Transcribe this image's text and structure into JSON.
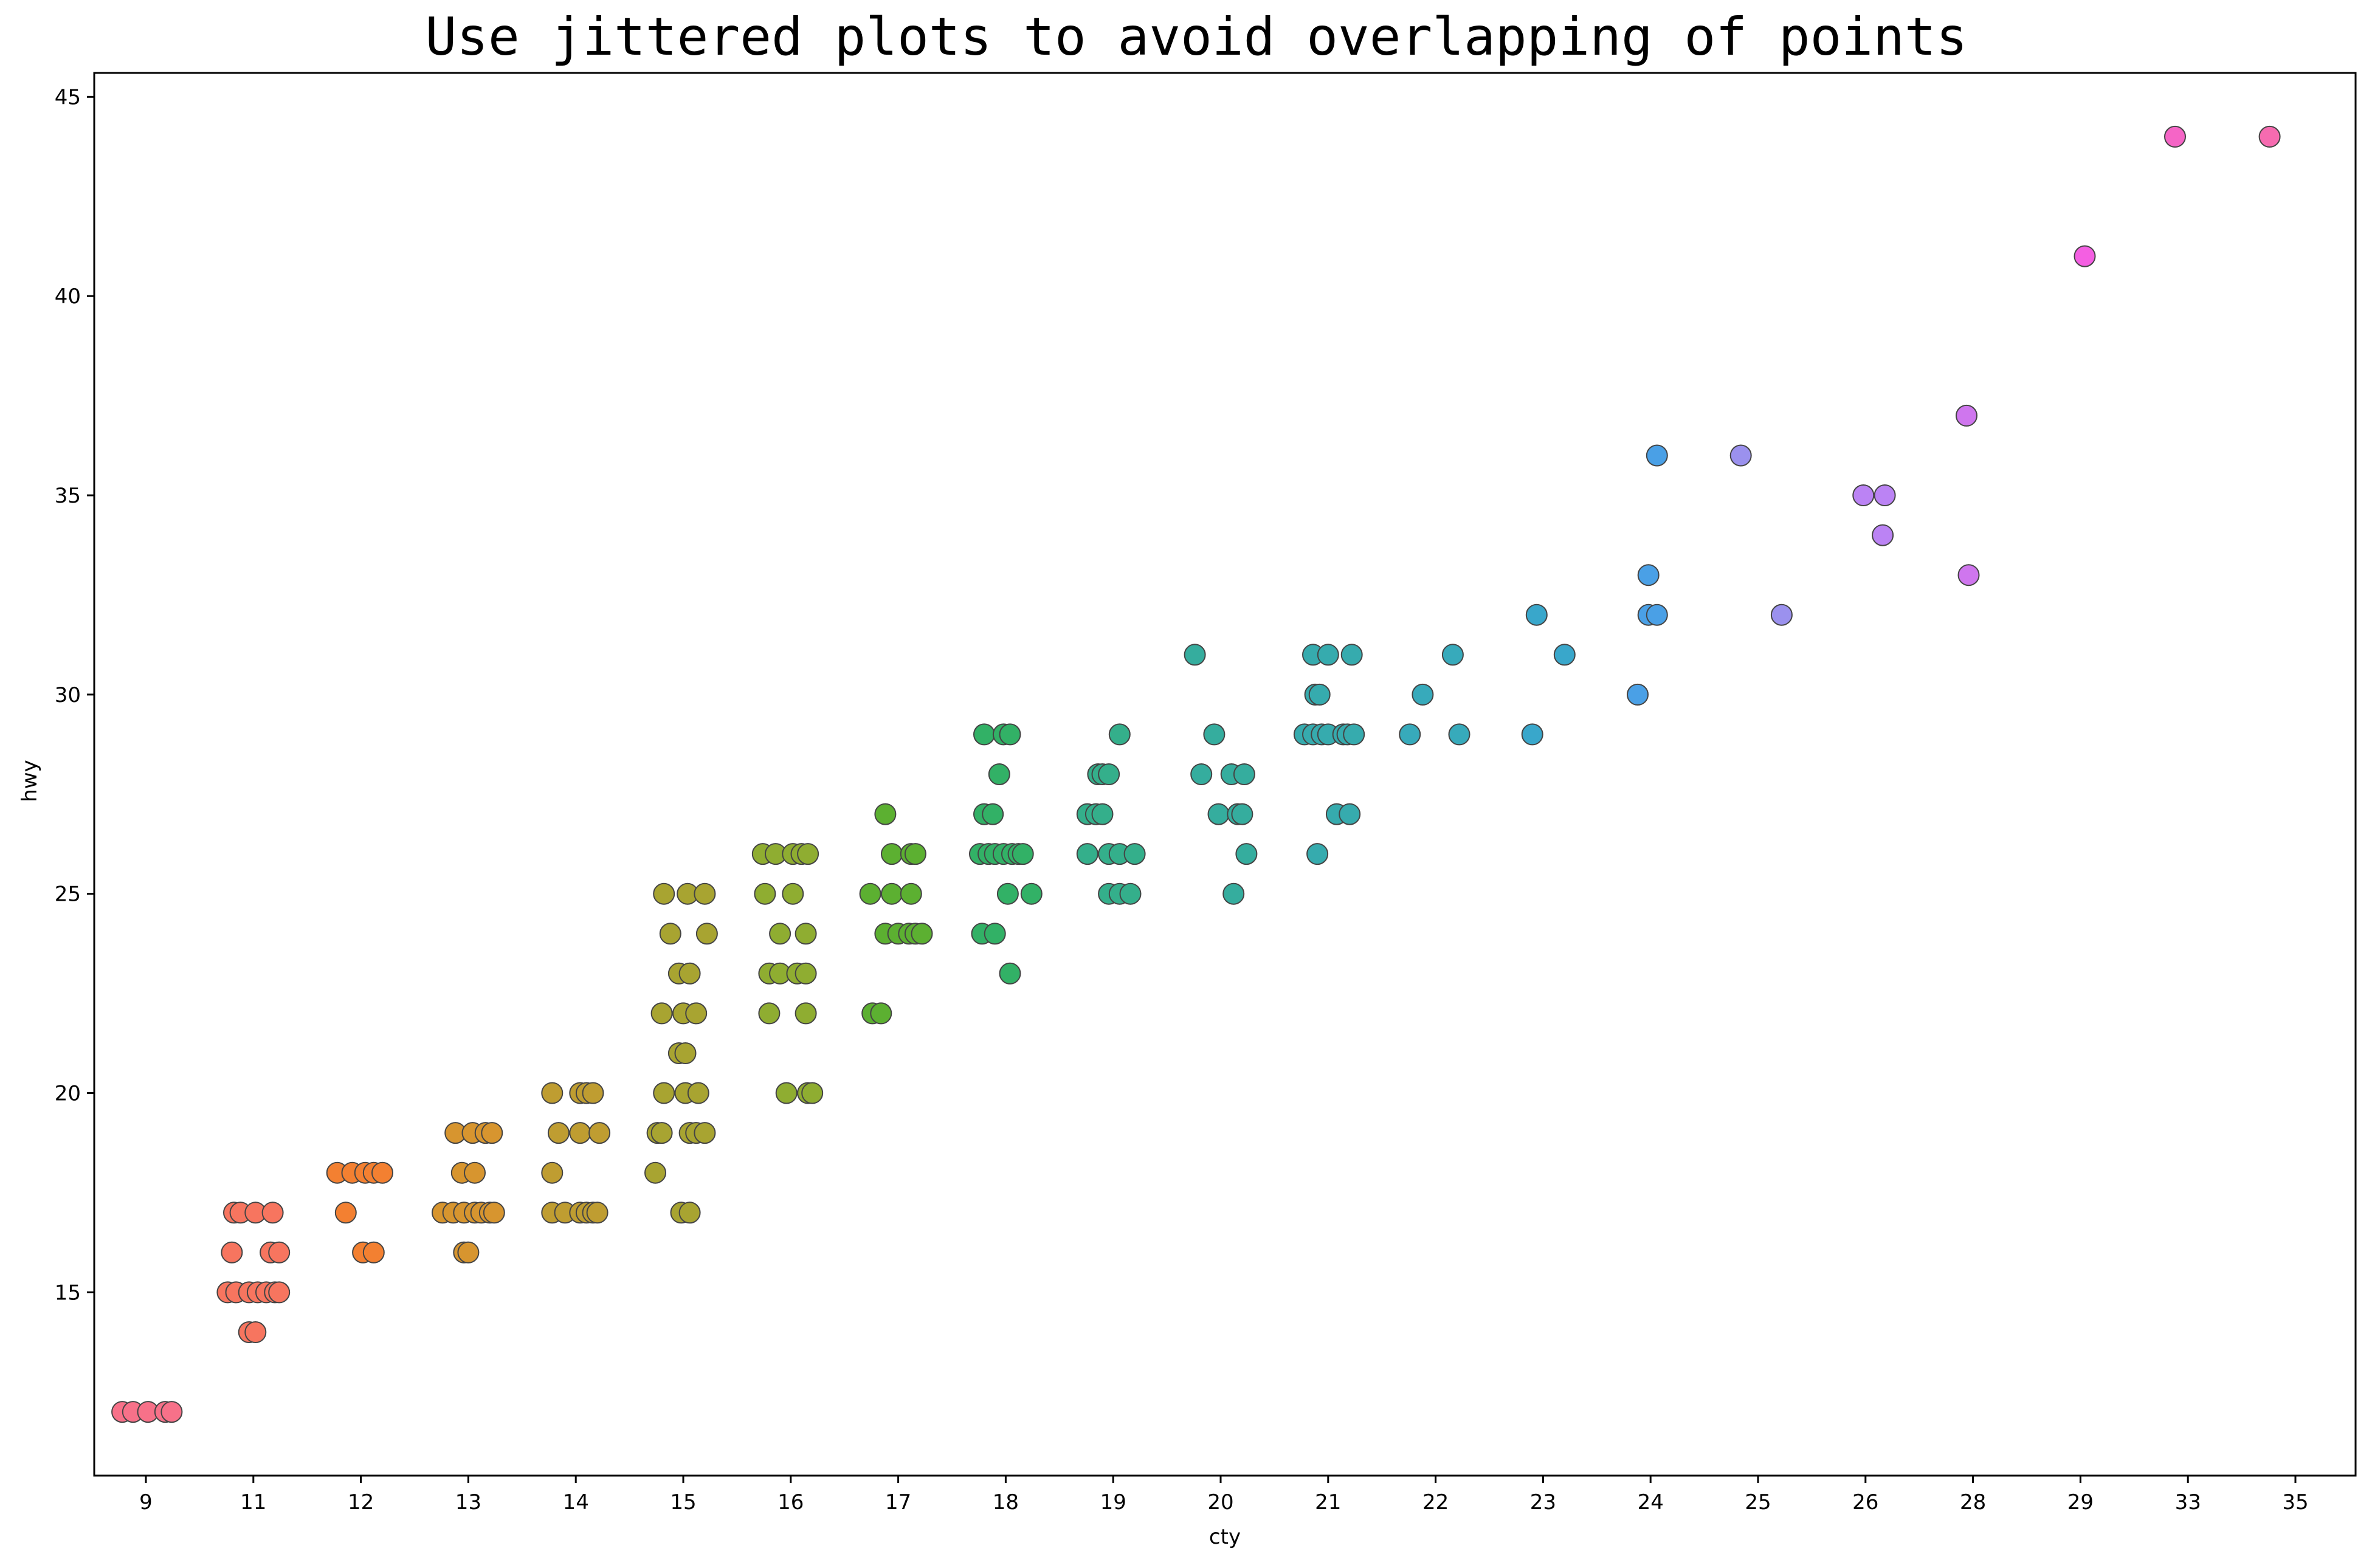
{
  "chart_data": {
    "type": "scatter",
    "title": "Use jittered plots to avoid overlapping of points",
    "xlabel": "cty",
    "ylabel": "hwy",
    "x_categorical": true,
    "categories": [
      "9",
      "11",
      "12",
      "13",
      "14",
      "15",
      "16",
      "17",
      "18",
      "19",
      "20",
      "21",
      "22",
      "23",
      "24",
      "25",
      "26",
      "28",
      "29",
      "33",
      "35"
    ],
    "ylim": [
      10.4,
      45.6
    ],
    "y_ticks": [
      "15",
      "20",
      "25",
      "30",
      "35",
      "40",
      "45"
    ],
    "grid": false,
    "marker_edge_color": "#444444",
    "colors": {
      "9": "#f77189",
      "11": "#f7755f",
      "12": "#f38031",
      "13": "#d7952f",
      "14": "#bf9d31",
      "15": "#a8a431",
      "16": "#8fad31",
      "17": "#5cb031",
      "18": "#32b166",
      "19": "#34af8b",
      "20": "#35ad9e",
      "21": "#36abae",
      "22": "#37aabb",
      "23": "#39a7cb",
      "24": "#4aa0e6",
      "25": "#9b91ee",
      "26": "#bb83f4",
      "28": "#cf76ee",
      "29": "#f45fe2",
      "33": "#f565c6",
      "35": "#f66bb0"
    },
    "points": [
      {
        "x": "9",
        "dx": -0.22,
        "y": 12
      },
      {
        "x": "9",
        "dx": -0.12,
        "y": 12
      },
      {
        "x": "9",
        "dx": 0.02,
        "y": 12
      },
      {
        "x": "9",
        "dx": 0.18,
        "y": 12
      },
      {
        "x": "9",
        "dx": 0.24,
        "y": 12
      },
      {
        "x": "11",
        "dx": -0.18,
        "y": 17
      },
      {
        "x": "11",
        "dx": -0.12,
        "y": 17
      },
      {
        "x": "11",
        "dx": 0.02,
        "y": 17
      },
      {
        "x": "11",
        "dx": 0.18,
        "y": 17
      },
      {
        "x": "11",
        "dx": -0.2,
        "y": 16
      },
      {
        "x": "11",
        "dx": 0.16,
        "y": 16
      },
      {
        "x": "11",
        "dx": 0.24,
        "y": 16
      },
      {
        "x": "11",
        "dx": -0.24,
        "y": 15
      },
      {
        "x": "11",
        "dx": -0.16,
        "y": 15
      },
      {
        "x": "11",
        "dx": -0.04,
        "y": 15
      },
      {
        "x": "11",
        "dx": 0.04,
        "y": 15
      },
      {
        "x": "11",
        "dx": 0.12,
        "y": 15
      },
      {
        "x": "11",
        "dx": 0.2,
        "y": 15
      },
      {
        "x": "11",
        "dx": 0.24,
        "y": 15
      },
      {
        "x": "11",
        "dx": -0.04,
        "y": 14
      },
      {
        "x": "11",
        "dx": 0.02,
        "y": 14
      },
      {
        "x": "12",
        "dx": -0.22,
        "y": 18
      },
      {
        "x": "12",
        "dx": -0.08,
        "y": 18
      },
      {
        "x": "12",
        "dx": 0.04,
        "y": 18
      },
      {
        "x": "12",
        "dx": 0.12,
        "y": 18
      },
      {
        "x": "12",
        "dx": 0.2,
        "y": 18
      },
      {
        "x": "12",
        "dx": -0.14,
        "y": 17
      },
      {
        "x": "12",
        "dx": 0.02,
        "y": 16
      },
      {
        "x": "12",
        "dx": 0.12,
        "y": 16
      },
      {
        "x": "13",
        "dx": -0.12,
        "y": 19
      },
      {
        "x": "13",
        "dx": 0.04,
        "y": 19
      },
      {
        "x": "13",
        "dx": 0.16,
        "y": 19
      },
      {
        "x": "13",
        "dx": 0.22,
        "y": 19
      },
      {
        "x": "13",
        "dx": -0.06,
        "y": 18
      },
      {
        "x": "13",
        "dx": 0.06,
        "y": 18
      },
      {
        "x": "13",
        "dx": -0.24,
        "y": 17
      },
      {
        "x": "13",
        "dx": -0.14,
        "y": 17
      },
      {
        "x": "13",
        "dx": -0.04,
        "y": 17
      },
      {
        "x": "13",
        "dx": 0.06,
        "y": 17
      },
      {
        "x": "13",
        "dx": 0.12,
        "y": 17
      },
      {
        "x": "13",
        "dx": 0.2,
        "y": 17
      },
      {
        "x": "13",
        "dx": 0.24,
        "y": 17
      },
      {
        "x": "13",
        "dx": -0.04,
        "y": 16
      },
      {
        "x": "13",
        "dx": 0.0,
        "y": 16
      },
      {
        "x": "14",
        "dx": -0.22,
        "y": 20
      },
      {
        "x": "14",
        "dx": 0.04,
        "y": 20
      },
      {
        "x": "14",
        "dx": 0.1,
        "y": 20
      },
      {
        "x": "14",
        "dx": 0.16,
        "y": 20
      },
      {
        "x": "14",
        "dx": -0.16,
        "y": 19
      },
      {
        "x": "14",
        "dx": 0.04,
        "y": 19
      },
      {
        "x": "14",
        "dx": 0.22,
        "y": 19
      },
      {
        "x": "14",
        "dx": -0.22,
        "y": 18
      },
      {
        "x": "14",
        "dx": -0.22,
        "y": 17
      },
      {
        "x": "14",
        "dx": -0.1,
        "y": 17
      },
      {
        "x": "14",
        "dx": 0.04,
        "y": 17
      },
      {
        "x": "14",
        "dx": 0.1,
        "y": 17
      },
      {
        "x": "14",
        "dx": 0.16,
        "y": 17
      },
      {
        "x": "14",
        "dx": 0.2,
        "y": 17
      },
      {
        "x": "15",
        "dx": -0.18,
        "y": 25
      },
      {
        "x": "15",
        "dx": 0.04,
        "y": 25
      },
      {
        "x": "15",
        "dx": 0.2,
        "y": 25
      },
      {
        "x": "15",
        "dx": -0.12,
        "y": 24
      },
      {
        "x": "15",
        "dx": 0.22,
        "y": 24
      },
      {
        "x": "15",
        "dx": -0.04,
        "y": 23
      },
      {
        "x": "15",
        "dx": 0.06,
        "y": 23
      },
      {
        "x": "15",
        "dx": -0.2,
        "y": 22
      },
      {
        "x": "15",
        "dx": 0.0,
        "y": 22
      },
      {
        "x": "15",
        "dx": 0.12,
        "y": 22
      },
      {
        "x": "15",
        "dx": -0.04,
        "y": 21
      },
      {
        "x": "15",
        "dx": 0.02,
        "y": 21
      },
      {
        "x": "15",
        "dx": -0.18,
        "y": 20
      },
      {
        "x": "15",
        "dx": 0.02,
        "y": 20
      },
      {
        "x": "15",
        "dx": 0.14,
        "y": 20
      },
      {
        "x": "15",
        "dx": -0.24,
        "y": 19
      },
      {
        "x": "15",
        "dx": -0.2,
        "y": 19
      },
      {
        "x": "15",
        "dx": 0.06,
        "y": 19
      },
      {
        "x": "15",
        "dx": 0.12,
        "y": 19
      },
      {
        "x": "15",
        "dx": 0.2,
        "y": 19
      },
      {
        "x": "15",
        "dx": -0.26,
        "y": 18
      },
      {
        "x": "15",
        "dx": -0.02,
        "y": 17
      },
      {
        "x": "15",
        "dx": 0.06,
        "y": 17
      },
      {
        "x": "16",
        "dx": -0.26,
        "y": 26
      },
      {
        "x": "16",
        "dx": -0.14,
        "y": 26
      },
      {
        "x": "16",
        "dx": 0.02,
        "y": 26
      },
      {
        "x": "16",
        "dx": 0.1,
        "y": 26
      },
      {
        "x": "16",
        "dx": 0.16,
        "y": 26
      },
      {
        "x": "16",
        "dx": -0.24,
        "y": 25
      },
      {
        "x": "16",
        "dx": 0.02,
        "y": 25
      },
      {
        "x": "16",
        "dx": -0.1,
        "y": 24
      },
      {
        "x": "16",
        "dx": 0.14,
        "y": 24
      },
      {
        "x": "16",
        "dx": -0.2,
        "y": 23
      },
      {
        "x": "16",
        "dx": -0.1,
        "y": 23
      },
      {
        "x": "16",
        "dx": 0.06,
        "y": 23
      },
      {
        "x": "16",
        "dx": 0.14,
        "y": 23
      },
      {
        "x": "16",
        "dx": -0.2,
        "y": 22
      },
      {
        "x": "16",
        "dx": 0.14,
        "y": 22
      },
      {
        "x": "16",
        "dx": -0.04,
        "y": 20
      },
      {
        "x": "16",
        "dx": 0.16,
        "y": 20
      },
      {
        "x": "16",
        "dx": 0.2,
        "y": 20
      },
      {
        "x": "17",
        "dx": -0.12,
        "y": 27
      },
      {
        "x": "17",
        "dx": -0.06,
        "y": 26
      },
      {
        "x": "17",
        "dx": 0.12,
        "y": 26
      },
      {
        "x": "17",
        "dx": 0.16,
        "y": 26
      },
      {
        "x": "17",
        "dx": -0.26,
        "y": 25
      },
      {
        "x": "17",
        "dx": -0.06,
        "y": 25
      },
      {
        "x": "17",
        "dx": 0.12,
        "y": 25
      },
      {
        "x": "17",
        "dx": -0.12,
        "y": 24
      },
      {
        "x": "17",
        "dx": 0.0,
        "y": 24
      },
      {
        "x": "17",
        "dx": 0.1,
        "y": 24
      },
      {
        "x": "17",
        "dx": 0.16,
        "y": 24
      },
      {
        "x": "17",
        "dx": 0.22,
        "y": 24
      },
      {
        "x": "17",
        "dx": -0.24,
        "y": 22
      },
      {
        "x": "17",
        "dx": -0.16,
        "y": 22
      },
      {
        "x": "18",
        "dx": -0.2,
        "y": 29
      },
      {
        "x": "18",
        "dx": -0.02,
        "y": 29
      },
      {
        "x": "18",
        "dx": 0.04,
        "y": 29
      },
      {
        "x": "18",
        "dx": -0.06,
        "y": 28
      },
      {
        "x": "18",
        "dx": -0.2,
        "y": 27
      },
      {
        "x": "18",
        "dx": -0.12,
        "y": 27
      },
      {
        "x": "18",
        "dx": -0.24,
        "y": 26
      },
      {
        "x": "18",
        "dx": -0.16,
        "y": 26
      },
      {
        "x": "18",
        "dx": -0.1,
        "y": 26
      },
      {
        "x": "18",
        "dx": -0.02,
        "y": 26
      },
      {
        "x": "18",
        "dx": 0.06,
        "y": 26
      },
      {
        "x": "18",
        "dx": 0.12,
        "y": 26
      },
      {
        "x": "18",
        "dx": 0.16,
        "y": 26
      },
      {
        "x": "18",
        "dx": 0.02,
        "y": 25
      },
      {
        "x": "18",
        "dx": 0.24,
        "y": 25
      },
      {
        "x": "18",
        "dx": -0.22,
        "y": 24
      },
      {
        "x": "18",
        "dx": -0.1,
        "y": 24
      },
      {
        "x": "18",
        "dx": 0.04,
        "y": 23
      },
      {
        "x": "19",
        "dx": 0.06,
        "y": 29
      },
      {
        "x": "19",
        "dx": -0.14,
        "y": 28
      },
      {
        "x": "19",
        "dx": -0.1,
        "y": 28
      },
      {
        "x": "19",
        "dx": -0.04,
        "y": 28
      },
      {
        "x": "19",
        "dx": -0.24,
        "y": 27
      },
      {
        "x": "19",
        "dx": -0.16,
        "y": 27
      },
      {
        "x": "19",
        "dx": -0.1,
        "y": 27
      },
      {
        "x": "19",
        "dx": -0.24,
        "y": 26
      },
      {
        "x": "19",
        "dx": -0.04,
        "y": 26
      },
      {
        "x": "19",
        "dx": 0.06,
        "y": 26
      },
      {
        "x": "19",
        "dx": 0.2,
        "y": 26
      },
      {
        "x": "19",
        "dx": -0.04,
        "y": 25
      },
      {
        "x": "19",
        "dx": 0.06,
        "y": 25
      },
      {
        "x": "19",
        "dx": 0.16,
        "y": 25
      },
      {
        "x": "20",
        "dx": -0.24,
        "y": 31
      },
      {
        "x": "20",
        "dx": -0.06,
        "y": 29
      },
      {
        "x": "20",
        "dx": -0.18,
        "y": 28
      },
      {
        "x": "20",
        "dx": 0.1,
        "y": 28
      },
      {
        "x": "20",
        "dx": 0.22,
        "y": 28
      },
      {
        "x": "20",
        "dx": -0.02,
        "y": 27
      },
      {
        "x": "20",
        "dx": 0.16,
        "y": 27
      },
      {
        "x": "20",
        "dx": 0.2,
        "y": 27
      },
      {
        "x": "20",
        "dx": 0.24,
        "y": 26
      },
      {
        "x": "20",
        "dx": 0.12,
        "y": 25
      },
      {
        "x": "21",
        "dx": -0.14,
        "y": 31
      },
      {
        "x": "21",
        "dx": 0.0,
        "y": 31
      },
      {
        "x": "21",
        "dx": 0.22,
        "y": 31
      },
      {
        "x": "21",
        "dx": -0.12,
        "y": 30
      },
      {
        "x": "21",
        "dx": -0.08,
        "y": 30
      },
      {
        "x": "21",
        "dx": -0.22,
        "y": 29
      },
      {
        "x": "21",
        "dx": -0.14,
        "y": 29
      },
      {
        "x": "21",
        "dx": -0.06,
        "y": 29
      },
      {
        "x": "21",
        "dx": 0.0,
        "y": 29
      },
      {
        "x": "21",
        "dx": 0.14,
        "y": 29
      },
      {
        "x": "21",
        "dx": 0.18,
        "y": 29
      },
      {
        "x": "21",
        "dx": 0.24,
        "y": 29
      },
      {
        "x": "21",
        "dx": 0.08,
        "y": 27
      },
      {
        "x": "21",
        "dx": 0.2,
        "y": 27
      },
      {
        "x": "21",
        "dx": -0.1,
        "y": 26
      },
      {
        "x": "22",
        "dx": 0.16,
        "y": 31
      },
      {
        "x": "22",
        "dx": -0.12,
        "y": 30
      },
      {
        "x": "22",
        "dx": -0.24,
        "y": 29
      },
      {
        "x": "22",
        "dx": 0.22,
        "y": 29
      },
      {
        "x": "23",
        "dx": -0.06,
        "y": 32
      },
      {
        "x": "23",
        "dx": 0.2,
        "y": 31
      },
      {
        "x": "23",
        "dx": -0.1,
        "y": 29
      },
      {
        "x": "24",
        "dx": 0.06,
        "y": 36
      },
      {
        "x": "24",
        "dx": -0.02,
        "y": 33
      },
      {
        "x": "24",
        "dx": -0.02,
        "y": 32
      },
      {
        "x": "24",
        "dx": 0.06,
        "y": 32
      },
      {
        "x": "24",
        "dx": -0.12,
        "y": 30
      },
      {
        "x": "25",
        "dx": -0.16,
        "y": 36
      },
      {
        "x": "25",
        "dx": 0.22,
        "y": 32
      },
      {
        "x": "26",
        "dx": -0.02,
        "y": 35
      },
      {
        "x": "26",
        "dx": 0.18,
        "y": 35
      },
      {
        "x": "26",
        "dx": 0.16,
        "y": 34
      },
      {
        "x": "28",
        "dx": -0.06,
        "y": 37
      },
      {
        "x": "28",
        "dx": -0.04,
        "y": 33
      },
      {
        "x": "29",
        "dx": 0.04,
        "y": 41
      },
      {
        "x": "33",
        "dx": -0.12,
        "y": 44
      },
      {
        "x": "35",
        "dx": -0.24,
        "y": 44
      }
    ]
  }
}
